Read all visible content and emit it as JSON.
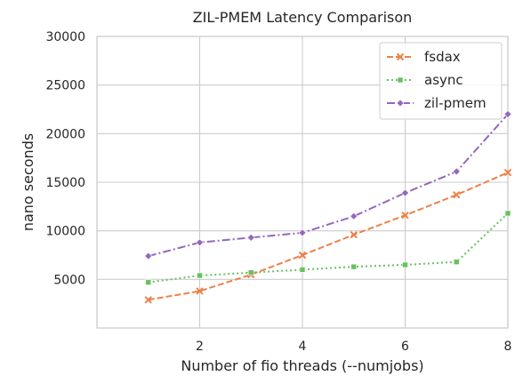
{
  "chart_data": {
    "type": "line",
    "title": "ZIL-PMEM Latency Comparison",
    "xlabel": "Number of fio threads (--numjobs)",
    "ylabel": "nano seconds",
    "xlim": [
      0,
      8
    ],
    "ylim": [
      0,
      30000
    ],
    "xticks": [
      2,
      4,
      6,
      8
    ],
    "yticks": [
      5000,
      10000,
      15000,
      20000,
      25000,
      30000
    ],
    "grid": true,
    "legend_position": "top-right",
    "x": [
      1,
      2,
      3,
      4,
      5,
      6,
      7,
      8
    ],
    "series": [
      {
        "name": "fsdax",
        "color": "#ed8149",
        "dash": "dashed",
        "marker": "x",
        "values": [
          2900,
          3800,
          5500,
          7500,
          9600,
          11600,
          13700,
          16000
        ]
      },
      {
        "name": "async",
        "color": "#66c15f",
        "dash": "dotted",
        "marker": "square",
        "values": [
          4700,
          5400,
          5700,
          6000,
          6300,
          6500,
          6800,
          11800
        ]
      },
      {
        "name": "zil-pmem",
        "color": "#9467bd",
        "dash": "dashdot",
        "marker": "diamond",
        "values": [
          7400,
          8800,
          9300,
          9800,
          11500,
          13900,
          16100,
          22000
        ]
      }
    ]
  }
}
